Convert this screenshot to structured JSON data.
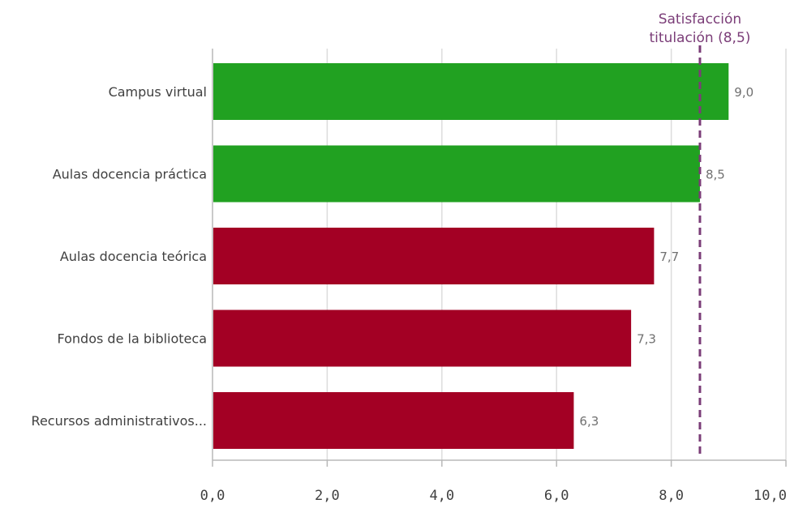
{
  "chart_data": {
    "type": "bar",
    "orientation": "horizontal",
    "categories": [
      "Campus virtual",
      "Aulas docencia práctica",
      "Aulas docencia teórica",
      "Fondos de la biblioteca",
      "Recursos administrativos..."
    ],
    "values": [
      9.0,
      8.5,
      7.7,
      7.3,
      6.3
    ],
    "value_labels": [
      "9,0",
      "8,5",
      "7,7",
      "7,3",
      "6,3"
    ],
    "bar_colors": [
      "#21a121",
      "#21a121",
      "#a30024",
      "#a30024",
      "#a30024"
    ],
    "xlim": [
      0,
      10
    ],
    "xticks": [
      0,
      2,
      4,
      6,
      8,
      10
    ],
    "xtick_labels": [
      "0,0",
      "2,0",
      "4,0",
      "6,0",
      "8,0",
      "10,0"
    ],
    "grid": true,
    "reference_line": {
      "value": 8.5,
      "label_lines": [
        "Satisfacción",
        "titulación (8,5)"
      ],
      "color": "#7b3d78",
      "style": "dashed"
    },
    "title": "",
    "xlabel": "",
    "ylabel": ""
  }
}
